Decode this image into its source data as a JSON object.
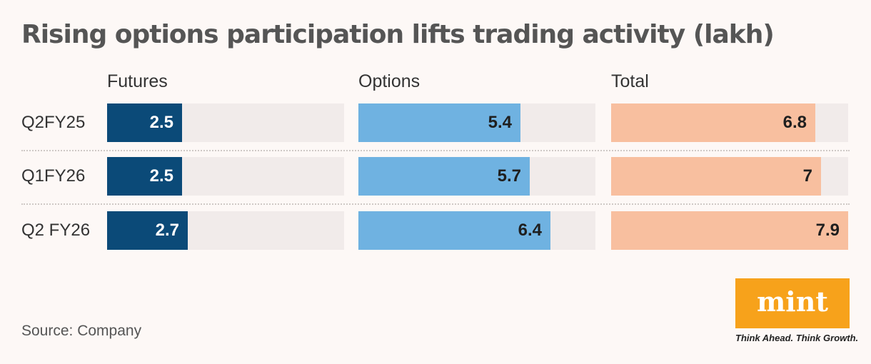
{
  "chart_data": {
    "type": "bar",
    "title": "Rising options participation lifts trading activity (lakh)",
    "categories": [
      "Q2FY25",
      "Q1FY26",
      "Q2 FY26"
    ],
    "series": [
      {
        "name": "Futures",
        "values": [
          2.5,
          2.5,
          2.7
        ],
        "color": "#0b4a78",
        "text_color": "#ffffff"
      },
      {
        "name": "Options",
        "values": [
          5.4,
          5.7,
          6.4
        ],
        "color": "#6fb2e1",
        "text_color": "#1f1f1f"
      },
      {
        "name": "Total",
        "values": [
          6.8,
          7,
          7.9
        ],
        "color": "#f8bf9f",
        "text_color": "#1f1f1f"
      }
    ],
    "value_labels": [
      [
        "2.5",
        "2.5",
        "2.7"
      ],
      [
        "5.4",
        "5.7",
        "6.4"
      ],
      [
        "6.8",
        "7",
        "7.9"
      ]
    ],
    "track_color": "#f1ebea",
    "source": "Source: Company"
  },
  "branding": {
    "logo_text": "mint",
    "tagline": "Think Ahead. Think Growth.",
    "logo_color": "#f7a21b"
  }
}
